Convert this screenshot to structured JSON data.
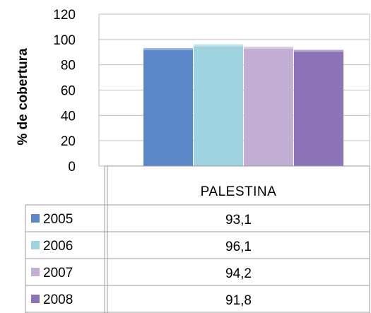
{
  "chart_data": {
    "type": "bar",
    "categories": [
      "PALESTINA"
    ],
    "series": [
      {
        "name": "2005",
        "values": [
          93.1
        ],
        "label": "93,1",
        "color": "#5b87c9"
      },
      {
        "name": "2006",
        "values": [
          96.1
        ],
        "label": "96,1",
        "color": "#9fd3e0"
      },
      {
        "name": "2007",
        "values": [
          94.2
        ],
        "label": "94,2",
        "color": "#c3aed4"
      },
      {
        "name": "2008",
        "values": [
          91.8
        ],
        "label": "91,8",
        "color": "#8c73b5"
      }
    ],
    "ylabel": "% de cobertura",
    "ylim": [
      0,
      120
    ],
    "yticks": [
      "0",
      "20",
      "40",
      "60",
      "80",
      "100",
      "120"
    ],
    "grid": true,
    "legend": "data-table-left"
  }
}
